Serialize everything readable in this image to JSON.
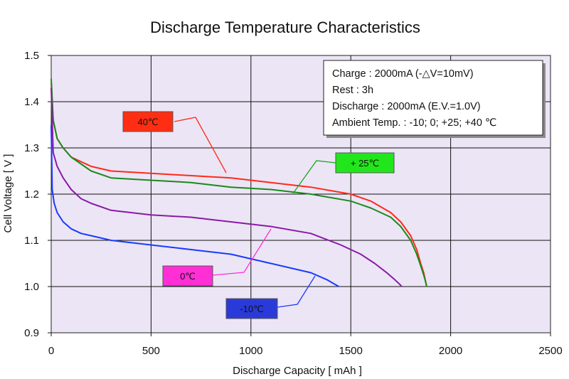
{
  "chart_data": {
    "type": "line",
    "title": "Discharge Temperature Characteristics",
    "xlabel": "Discharge Capacity [ mAh ]",
    "ylabel": "Cell Voltage [ V ]",
    "xlim": [
      0,
      2500
    ],
    "ylim": [
      0.9,
      1.5
    ],
    "xticks": [
      0,
      500,
      1000,
      1500,
      2000,
      2500
    ],
    "yticks": [
      0.9,
      1.0,
      1.1,
      1.2,
      1.3,
      1.4,
      1.5
    ],
    "xtick_labels": [
      "0",
      "500",
      "1000",
      "1500",
      "2000",
      "2500"
    ],
    "ytick_labels": [
      "0.9",
      "1.0",
      "1.1",
      "1.2",
      "1.3",
      "1.4",
      "1.5"
    ],
    "grid": true,
    "plot_background": "#ece5f5",
    "info_box": {
      "lines": [
        "Charge : 2000mA (-△V=10mV)",
        "Rest : 3h",
        "Discharge : 2000mA (E.V.=1.0V)",
        "Ambient Temp. : -10; 0; +25; +40 ℃"
      ],
      "placement": "top-right"
    },
    "series": [
      {
        "name": "40℃",
        "color": "#ff2a1a",
        "tag_color": "#ff2e12",
        "x": [
          0,
          10,
          30,
          60,
          100,
          200,
          300,
          500,
          700,
          900,
          1100,
          1300,
          1500,
          1600,
          1700,
          1750,
          1800,
          1830,
          1850,
          1865,
          1875,
          1880
        ],
        "y": [
          1.44,
          1.36,
          1.32,
          1.3,
          1.28,
          1.26,
          1.25,
          1.245,
          1.24,
          1.235,
          1.225,
          1.215,
          1.2,
          1.185,
          1.16,
          1.14,
          1.11,
          1.08,
          1.05,
          1.03,
          1.01,
          1.0
        ]
      },
      {
        "name": "+ 25℃",
        "color": "#1a8a1a",
        "tag_color": "#22e61c",
        "x": [
          0,
          10,
          30,
          60,
          100,
          200,
          300,
          500,
          700,
          900,
          1100,
          1300,
          1500,
          1600,
          1700,
          1750,
          1800,
          1830,
          1850,
          1865,
          1875,
          1880
        ],
        "y": [
          1.45,
          1.36,
          1.32,
          1.3,
          1.28,
          1.25,
          1.235,
          1.23,
          1.225,
          1.215,
          1.21,
          1.2,
          1.185,
          1.17,
          1.15,
          1.13,
          1.1,
          1.07,
          1.045,
          1.025,
          1.01,
          1.0
        ]
      },
      {
        "name": "0℃",
        "color": "#8a1aa8",
        "tag_color": "#ff2fd6",
        "x": [
          0,
          10,
          30,
          60,
          100,
          150,
          200,
          300,
          500,
          700,
          900,
          1100,
          1300,
          1450,
          1550,
          1620,
          1680,
          1720,
          1745,
          1755
        ],
        "y": [
          1.43,
          1.29,
          1.26,
          1.235,
          1.21,
          1.19,
          1.18,
          1.165,
          1.155,
          1.15,
          1.14,
          1.13,
          1.115,
          1.09,
          1.07,
          1.05,
          1.03,
          1.015,
          1.005,
          1.0
        ]
      },
      {
        "name": "-10℃",
        "color": "#1a3aff",
        "tag_color": "#2a3ad8",
        "x": [
          0,
          5,
          15,
          30,
          60,
          100,
          150,
          200,
          300,
          500,
          700,
          900,
          1100,
          1200,
          1300,
          1380,
          1420,
          1440
        ],
        "y": [
          1.35,
          1.21,
          1.18,
          1.16,
          1.14,
          1.125,
          1.115,
          1.11,
          1.1,
          1.09,
          1.08,
          1.07,
          1.05,
          1.04,
          1.03,
          1.015,
          1.005,
          1.0
        ]
      }
    ],
    "series_labels": [
      {
        "series": 0,
        "text": "40℃",
        "box_x": 173,
        "box_y": 157,
        "box_w": 70,
        "box_h": 28,
        "lx1": 245,
        "ly1": 171,
        "lx2": 275,
        "ly2": 165,
        "lx3": 318,
        "ly3": 243
      },
      {
        "series": 1,
        "text": "+ 25℃",
        "box_x": 472,
        "box_y": 215,
        "box_w": 82,
        "box_h": 28,
        "lx1": 472,
        "ly1": 229,
        "lx2": 445,
        "ly2": 226,
        "lx3": 412,
        "ly3": 272
      },
      {
        "series": 2,
        "text": "0℃",
        "box_x": 229,
        "box_y": 374,
        "box_w": 70,
        "box_h": 28,
        "lx1": 299,
        "ly1": 387,
        "lx2": 343,
        "ly2": 383,
        "lx3": 381,
        "ly3": 322
      },
      {
        "series": 3,
        "text": "-10℃",
        "box_x": 318,
        "box_y": 420,
        "box_w": 72,
        "box_h": 28,
        "lx1": 390,
        "ly1": 432,
        "lx2": 418,
        "ly2": 428,
        "lx3": 443,
        "ly3": 388
      }
    ]
  }
}
